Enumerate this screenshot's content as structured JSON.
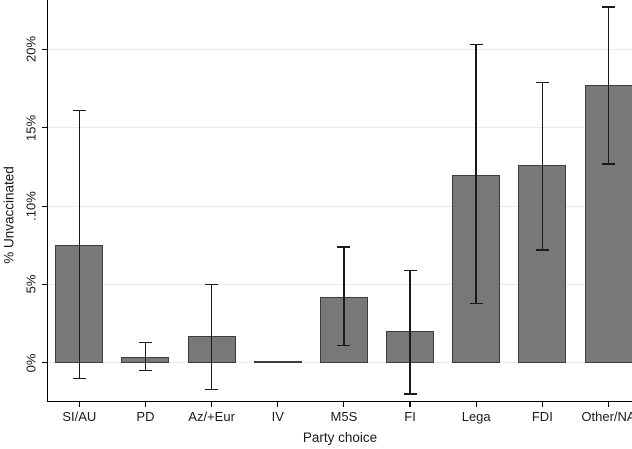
{
  "chart_data": {
    "type": "bar",
    "title": "",
    "xlabel": "Party choice",
    "ylabel": "% Unvaccinated",
    "categories": [
      "SI/AU",
      "PD",
      "Az/+Eur",
      "IV",
      "M5S",
      "FI",
      "Lega",
      "FDI",
      "Other/NA"
    ],
    "values": [
      7.5,
      0.4,
      1.7,
      0.1,
      4.2,
      2.0,
      12.0,
      12.6,
      17.7
    ],
    "error_low": [
      -1.0,
      -0.5,
      -1.7,
      null,
      1.1,
      -2.0,
      3.8,
      7.2,
      12.7
    ],
    "error_high": [
      16.1,
      1.3,
      5.0,
      null,
      7.4,
      5.9,
      20.3,
      17.9,
      22.7
    ],
    "y_ticks": [
      {
        "value": 0,
        "label": "0%"
      },
      {
        "value": 5,
        "label": "5%"
      },
      {
        "value": 10,
        "label": ".10%"
      },
      {
        "value": 15,
        "label": "15%"
      },
      {
        "value": 20,
        "label": "20%"
      }
    ],
    "ylim": [
      -2.5,
      23.2
    ],
    "grid": true,
    "legend": null,
    "colors": {
      "bar_fill": "#787878",
      "bar_border": "#3d3d3d",
      "error_bar": "#1a1a1a",
      "gridline": "#ebebeb",
      "axis": "#000000",
      "background": "#ffffff",
      "text": "#1a1a1a"
    }
  }
}
